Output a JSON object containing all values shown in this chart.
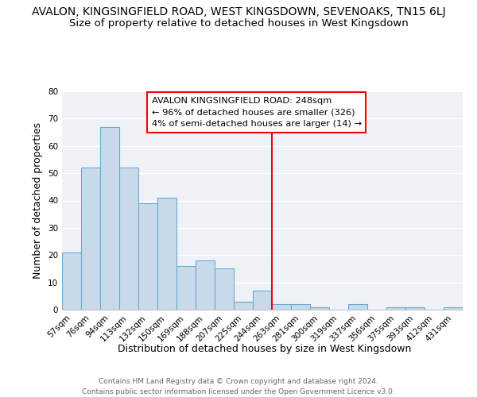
{
  "title": "AVALON, KINGSINGFIELD ROAD, WEST KINGSDOWN, SEVENOAKS, TN15 6LJ",
  "subtitle": "Size of property relative to detached houses in West Kingsdown",
  "xlabel": "Distribution of detached houses by size in West Kingsdown",
  "ylabel": "Number of detached properties",
  "bar_labels": [
    "57sqm",
    "76sqm",
    "94sqm",
    "113sqm",
    "132sqm",
    "150sqm",
    "169sqm",
    "188sqm",
    "207sqm",
    "225sqm",
    "244sqm",
    "263sqm",
    "281sqm",
    "300sqm",
    "319sqm",
    "337sqm",
    "356sqm",
    "375sqm",
    "393sqm",
    "412sqm",
    "431sqm"
  ],
  "bar_values": [
    21,
    52,
    67,
    52,
    39,
    41,
    16,
    18,
    15,
    3,
    7,
    2,
    2,
    1,
    0,
    2,
    0,
    1,
    1,
    0,
    1
  ],
  "bar_color": "#c8daea",
  "bar_edge_color": "#6aaad4",
  "ref_line_index": 10.5,
  "annotation_label": "AVALON KINGSINGFIELD ROAD: 248sqm",
  "annotation_line1": "← 96% of detached houses are smaller (326)",
  "annotation_line2": "4% of semi-detached houses are larger (14) →",
  "ylim": [
    0,
    80
  ],
  "yticks": [
    0,
    10,
    20,
    30,
    40,
    50,
    60,
    70,
    80
  ],
  "footer_line1": "Contains HM Land Registry data © Crown copyright and database right 2024.",
  "footer_line2": "Contains public sector information licensed under the Open Government Licence v3.0.",
  "bg_color": "#ffffff",
  "plot_bg_color": "#eef2f7",
  "title_fontsize": 10,
  "subtitle_fontsize": 9.5,
  "axis_label_fontsize": 9,
  "tick_fontsize": 7.5,
  "footer_fontsize": 6.5
}
